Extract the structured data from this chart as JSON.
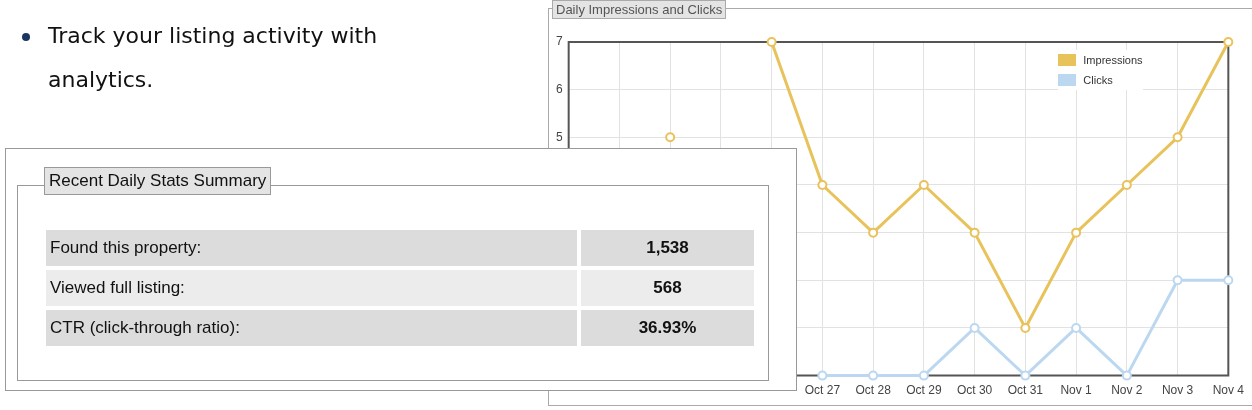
{
  "chart_data": [
    {
      "type": "line",
      "title": "Daily Impressions and Clicks",
      "annotations": [
        "Track your listing activity with analytics."
      ],
      "categories": [
        null,
        null,
        null,
        null,
        null,
        "Oct 27",
        "Oct 28",
        "Oct 29",
        "Oct 30",
        "Oct 31",
        "Nov 1",
        "Nov 2",
        "Nov 3",
        "Nov 4"
      ],
      "series": [
        {
          "name": "Impressions",
          "color": "#e8c25a",
          "values": [
            null,
            null,
            5,
            null,
            7,
            4,
            3,
            4,
            3,
            1,
            3,
            4,
            5,
            7
          ]
        },
        {
          "name": "Clicks",
          "color": "#bcd8f0",
          "values": [
            null,
            null,
            null,
            null,
            null,
            0,
            0,
            0,
            1,
            0,
            1,
            0,
            2,
            2
          ]
        }
      ],
      "ylim": [
        0,
        7
      ],
      "yticks": [
        {
          "value": 1,
          "label": null
        },
        {
          "value": 2,
          "label": null
        },
        {
          "value": 3,
          "label": null
        },
        {
          "value": 4,
          "label": null
        },
        5,
        6,
        7
      ],
      "grid": true,
      "legend": "top right",
      "marker": "circle"
    },
    {
      "type": "other",
      "title": "Recent Daily Stats Summary",
      "annotations": [
        "Found this property:",
        "1,538",
        "Viewed full listing:",
        "568",
        "CTR (click-through ratio):",
        "36.93%"
      ]
    }
  ]
}
